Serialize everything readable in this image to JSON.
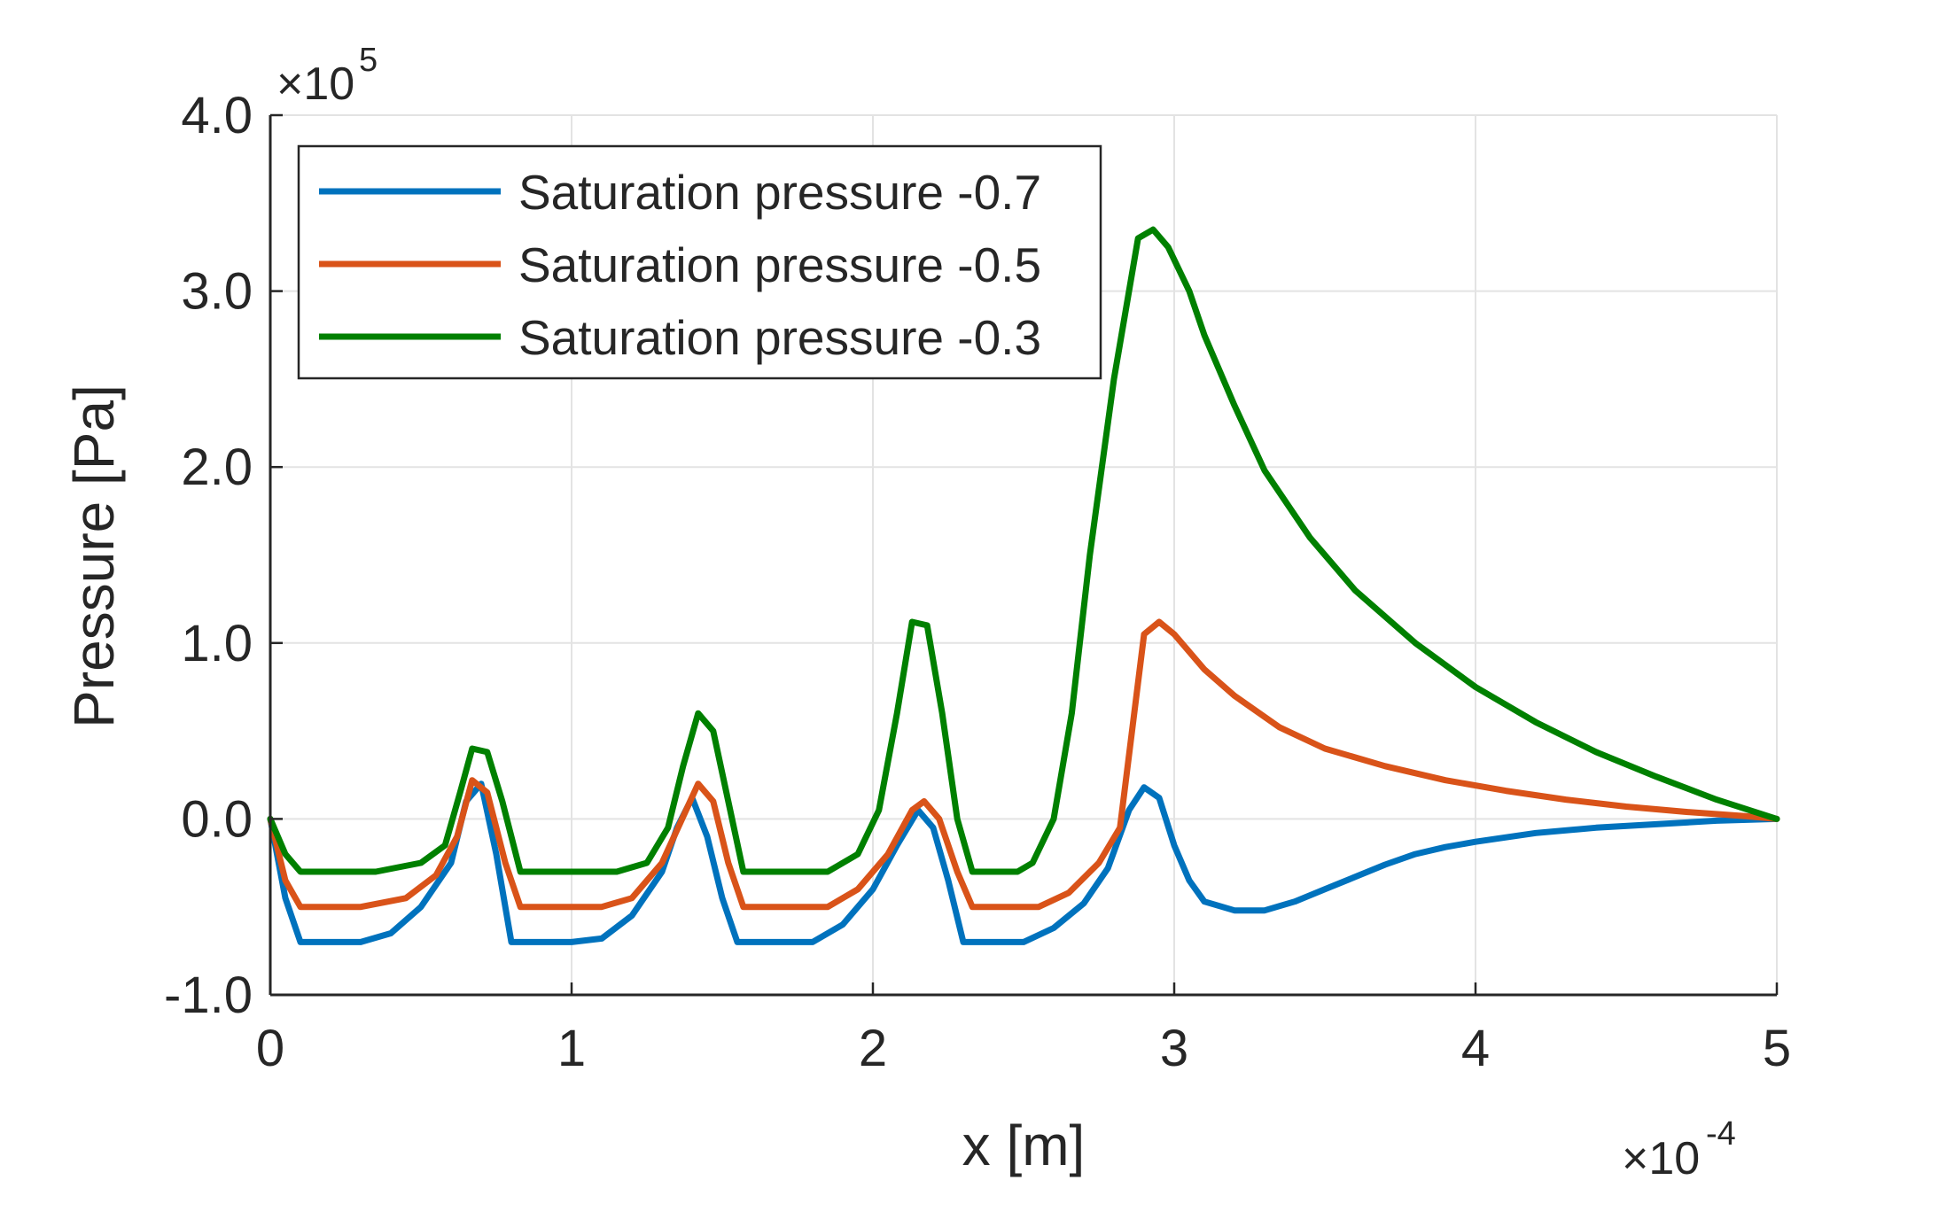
{
  "chart_data": {
    "type": "line",
    "title": "",
    "xlabel": "x [m]",
    "ylabel": "Pressure [Pa]",
    "x_multiplier": "×10",
    "x_multiplier_exp": "-4",
    "y_multiplier": "×10",
    "y_multiplier_exp": "5",
    "xlim": [
      0,
      5
    ],
    "ylim": [
      -1.0,
      4.0
    ],
    "x_ticks": [
      0,
      1,
      2,
      3,
      4,
      5
    ],
    "x_tick_labels": [
      "0",
      "1",
      "2",
      "3",
      "4",
      "5"
    ],
    "y_ticks": [
      -1.0,
      0.0,
      1.0,
      2.0,
      3.0,
      4.0
    ],
    "y_tick_labels": [
      "-1.0",
      "0.0",
      "1.0",
      "2.0",
      "3.0",
      "4.0"
    ],
    "grid": true,
    "legend_position": "top-left",
    "series": [
      {
        "name": "Saturation pressure -0.7",
        "color": "#0072BD",
        "points": [
          [
            0,
            0
          ],
          [
            0.05,
            -0.45
          ],
          [
            0.1,
            -0.7
          ],
          [
            0.3,
            -0.7
          ],
          [
            0.4,
            -0.65
          ],
          [
            0.5,
            -0.5
          ],
          [
            0.6,
            -0.25
          ],
          [
            0.65,
            0.1
          ],
          [
            0.7,
            0.2
          ],
          [
            0.75,
            -0.2
          ],
          [
            0.8,
            -0.7
          ],
          [
            1.0,
            -0.7
          ],
          [
            1.1,
            -0.68
          ],
          [
            1.2,
            -0.55
          ],
          [
            1.3,
            -0.3
          ],
          [
            1.35,
            -0.05
          ],
          [
            1.4,
            0.12
          ],
          [
            1.45,
            -0.1
          ],
          [
            1.5,
            -0.45
          ],
          [
            1.55,
            -0.7
          ],
          [
            1.8,
            -0.7
          ],
          [
            1.9,
            -0.6
          ],
          [
            2.0,
            -0.4
          ],
          [
            2.08,
            -0.15
          ],
          [
            2.15,
            0.05
          ],
          [
            2.2,
            -0.05
          ],
          [
            2.25,
            -0.35
          ],
          [
            2.3,
            -0.7
          ],
          [
            2.5,
            -0.7
          ],
          [
            2.6,
            -0.62
          ],
          [
            2.7,
            -0.48
          ],
          [
            2.78,
            -0.28
          ],
          [
            2.85,
            0.05
          ],
          [
            2.9,
            0.18
          ],
          [
            2.95,
            0.12
          ],
          [
            3.0,
            -0.15
          ],
          [
            3.05,
            -0.35
          ],
          [
            3.1,
            -0.47
          ],
          [
            3.2,
            -0.52
          ],
          [
            3.3,
            -0.52
          ],
          [
            3.4,
            -0.47
          ],
          [
            3.5,
            -0.4
          ],
          [
            3.6,
            -0.33
          ],
          [
            3.7,
            -0.26
          ],
          [
            3.8,
            -0.2
          ],
          [
            3.9,
            -0.16
          ],
          [
            4.0,
            -0.13
          ],
          [
            4.2,
            -0.08
          ],
          [
            4.4,
            -0.05
          ],
          [
            4.6,
            -0.03
          ],
          [
            4.8,
            -0.01
          ],
          [
            5.0,
            0
          ]
        ]
      },
      {
        "name": "Saturation pressure -0.5",
        "color": "#D95319",
        "points": [
          [
            0,
            0
          ],
          [
            0.05,
            -0.35
          ],
          [
            0.1,
            -0.5
          ],
          [
            0.3,
            -0.5
          ],
          [
            0.45,
            -0.45
          ],
          [
            0.55,
            -0.32
          ],
          [
            0.62,
            -0.1
          ],
          [
            0.67,
            0.22
          ],
          [
            0.72,
            0.15
          ],
          [
            0.78,
            -0.25
          ],
          [
            0.83,
            -0.5
          ],
          [
            1.1,
            -0.5
          ],
          [
            1.2,
            -0.45
          ],
          [
            1.3,
            -0.25
          ],
          [
            1.38,
            0.05
          ],
          [
            1.42,
            0.2
          ],
          [
            1.47,
            0.1
          ],
          [
            1.52,
            -0.25
          ],
          [
            1.57,
            -0.5
          ],
          [
            1.85,
            -0.5
          ],
          [
            1.95,
            -0.4
          ],
          [
            2.05,
            -0.2
          ],
          [
            2.13,
            0.05
          ],
          [
            2.17,
            0.1
          ],
          [
            2.22,
            0.0
          ],
          [
            2.28,
            -0.3
          ],
          [
            2.33,
            -0.5
          ],
          [
            2.55,
            -0.5
          ],
          [
            2.65,
            -0.42
          ],
          [
            2.75,
            -0.25
          ],
          [
            2.82,
            -0.05
          ],
          [
            2.86,
            0.5
          ],
          [
            2.9,
            1.05
          ],
          [
            2.95,
            1.12
          ],
          [
            3.0,
            1.05
          ],
          [
            3.1,
            0.85
          ],
          [
            3.2,
            0.7
          ],
          [
            3.35,
            0.52
          ],
          [
            3.5,
            0.4
          ],
          [
            3.7,
            0.3
          ],
          [
            3.9,
            0.22
          ],
          [
            4.1,
            0.16
          ],
          [
            4.3,
            0.11
          ],
          [
            4.5,
            0.07
          ],
          [
            4.7,
            0.04
          ],
          [
            4.9,
            0.015
          ],
          [
            5.0,
            0
          ]
        ]
      },
      {
        "name": "Saturation pressure -0.3",
        "color": "#008000",
        "points": [
          [
            0,
            0
          ],
          [
            0.05,
            -0.2
          ],
          [
            0.1,
            -0.3
          ],
          [
            0.35,
            -0.3
          ],
          [
            0.5,
            -0.25
          ],
          [
            0.58,
            -0.15
          ],
          [
            0.63,
            0.15
          ],
          [
            0.67,
            0.4
          ],
          [
            0.72,
            0.38
          ],
          [
            0.77,
            0.1
          ],
          [
            0.83,
            -0.3
          ],
          [
            1.15,
            -0.3
          ],
          [
            1.25,
            -0.25
          ],
          [
            1.32,
            -0.05
          ],
          [
            1.37,
            0.3
          ],
          [
            1.42,
            0.6
          ],
          [
            1.47,
            0.5
          ],
          [
            1.52,
            0.1
          ],
          [
            1.57,
            -0.3
          ],
          [
            1.85,
            -0.3
          ],
          [
            1.95,
            -0.2
          ],
          [
            2.02,
            0.05
          ],
          [
            2.08,
            0.6
          ],
          [
            2.13,
            1.12
          ],
          [
            2.18,
            1.1
          ],
          [
            2.23,
            0.6
          ],
          [
            2.28,
            0.0
          ],
          [
            2.33,
            -0.3
          ],
          [
            2.48,
            -0.3
          ],
          [
            2.53,
            -0.25
          ],
          [
            2.6,
            0.0
          ],
          [
            2.66,
            0.6
          ],
          [
            2.72,
            1.5
          ],
          [
            2.8,
            2.5
          ],
          [
            2.88,
            3.3
          ],
          [
            2.93,
            3.35
          ],
          [
            2.98,
            3.25
          ],
          [
            3.05,
            3.0
          ],
          [
            3.1,
            2.75
          ],
          [
            3.2,
            2.35
          ],
          [
            3.3,
            1.98
          ],
          [
            3.45,
            1.6
          ],
          [
            3.6,
            1.3
          ],
          [
            3.8,
            1.0
          ],
          [
            4.0,
            0.75
          ],
          [
            4.2,
            0.55
          ],
          [
            4.4,
            0.38
          ],
          [
            4.6,
            0.24
          ],
          [
            4.8,
            0.11
          ],
          [
            5.0,
            0
          ]
        ]
      }
    ]
  }
}
